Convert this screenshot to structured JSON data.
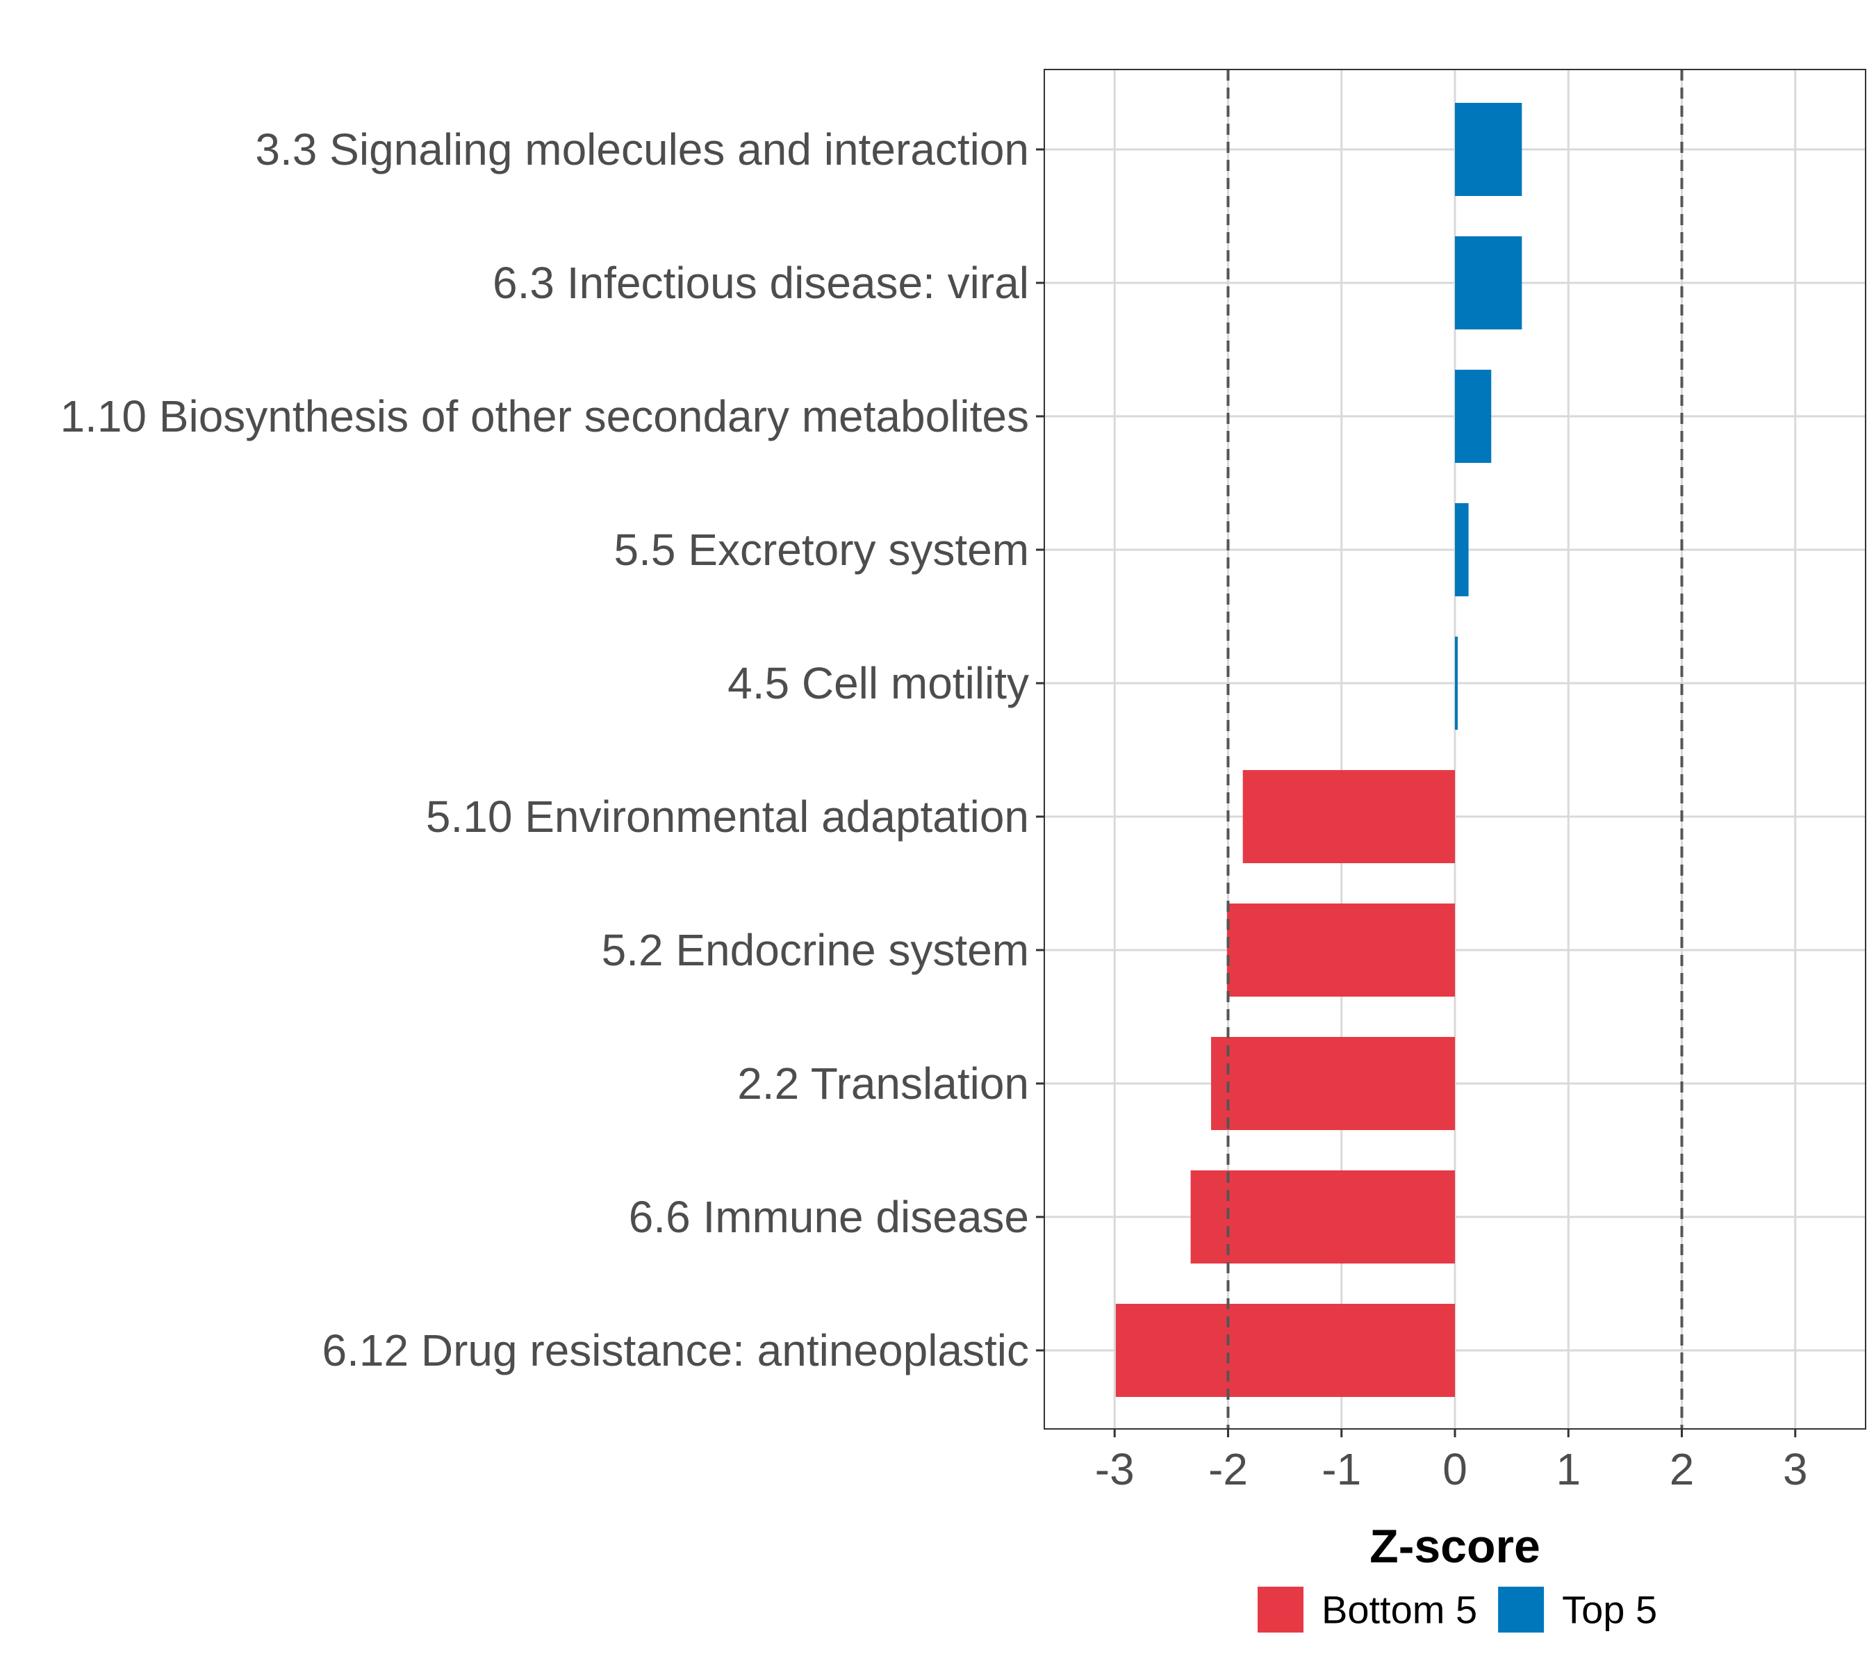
{
  "chart_data": {
    "type": "bar",
    "orientation": "horizontal",
    "title": "",
    "xlabel": "Z-score",
    "ylabel": "",
    "xlim": [
      -3.62,
      3.62
    ],
    "xticks": [
      -3,
      -2,
      -1,
      0,
      1,
      2,
      3
    ],
    "xtick_labels": [
      "-3",
      "-2",
      "-1",
      "0",
      "1",
      "2",
      "3"
    ],
    "reference_lines": [
      -2,
      2
    ],
    "grid": true,
    "legend_position": "bottom",
    "categories": [
      "3.3 Signaling molecules and interaction",
      "6.3 Infectious disease: viral",
      "1.10 Biosynthesis of other secondary metabolites",
      "5.5 Excretory system",
      "4.5 Cell motility",
      "5.10 Environmental adaptation",
      "5.2 Endocrine system",
      "2.2 Translation",
      "6.6 Immune disease",
      "6.12 Drug resistance: antineoplastic"
    ],
    "values": [
      0.59,
      0.59,
      0.32,
      0.12,
      0.02,
      -1.87,
      -2.01,
      -2.15,
      -2.33,
      -2.99
    ],
    "groups": [
      "Top 5",
      "Top 5",
      "Top 5",
      "Top 5",
      "Top 5",
      "Bottom 5",
      "Bottom 5",
      "Bottom 5",
      "Bottom 5",
      "Bottom 5"
    ],
    "legend": [
      {
        "name": "Bottom 5",
        "color": "#E63946"
      },
      {
        "name": "Top 5",
        "color": "#0077BB"
      }
    ],
    "colors": {
      "Bottom 5": "#E63946",
      "Top 5": "#0077BB",
      "grid": "#d9d9d9",
      "panel_border": "#333333",
      "reference_line": "#555555"
    }
  }
}
